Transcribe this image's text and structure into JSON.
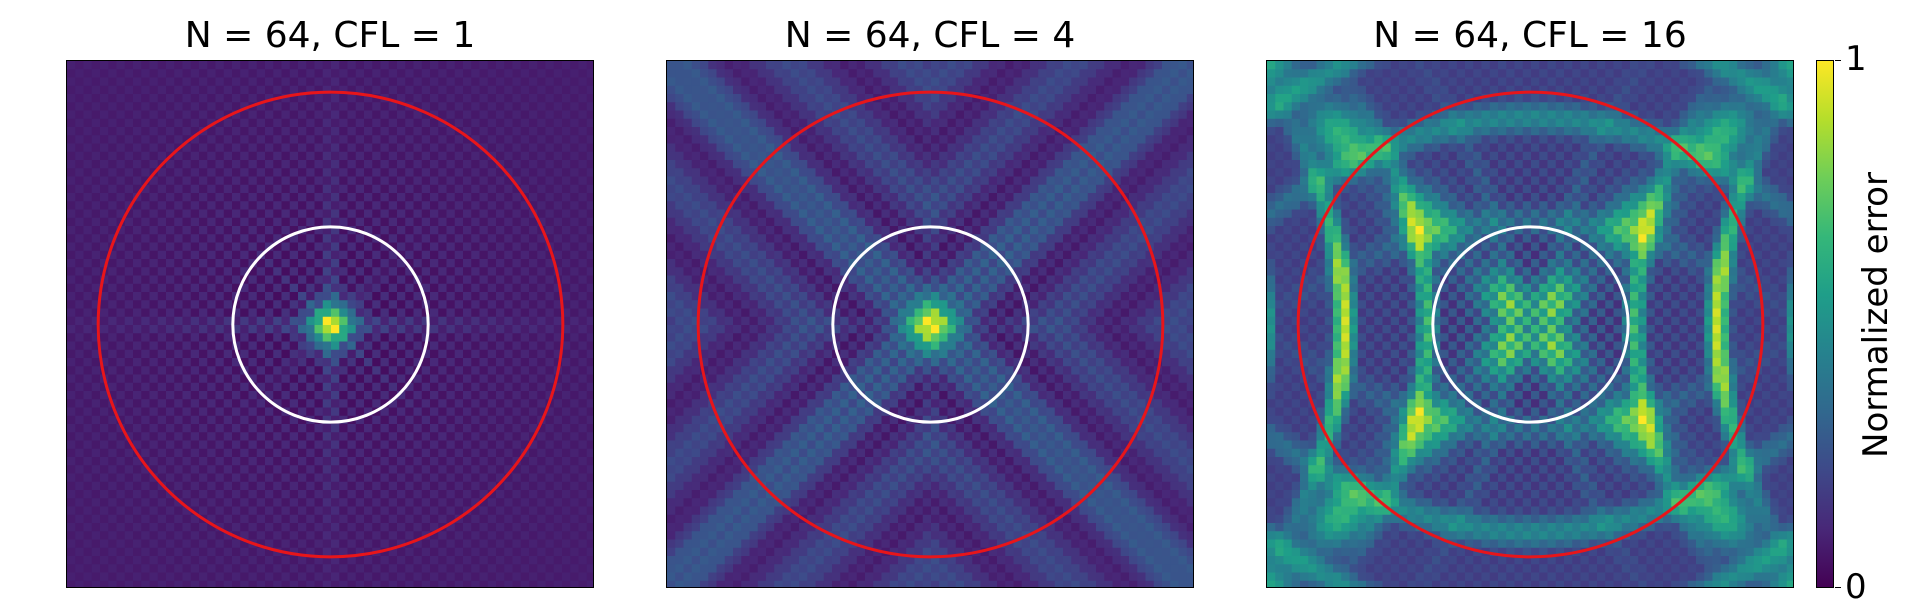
{
  "chart_data": [
    {
      "type": "heatmap",
      "title": "N = 64, CFL = 1",
      "grid_cells": [
        64,
        64
      ],
      "peak_value": 1.0,
      "background_value": 0.06,
      "pattern": "isotropic ripple with cross-shaped streaks around a bright centre cell",
      "overlays": [
        {
          "shape": "circle",
          "color": "#ffffff",
          "radius_fraction_of_half_width": 0.37
        },
        {
          "shape": "circle",
          "color": "#e8151a",
          "radius_fraction_of_half_width": 0.88
        }
      ]
    },
    {
      "type": "heatmap",
      "title": "N = 64, CFL = 4",
      "grid_cells": [
        64,
        64
      ],
      "peak_value": 1.0,
      "background_value": 0.12,
      "pattern": "diagonal X-shaped streaks and curved fronts around a bright centre cell",
      "overlays": [
        {
          "shape": "circle",
          "color": "#ffffff",
          "radius_fraction_of_half_width": 0.37
        },
        {
          "shape": "circle",
          "color": "#e8151a",
          "radius_fraction_of_half_width": 0.88
        }
      ]
    },
    {
      "type": "heatmap",
      "title": "N = 64, CFL = 16",
      "grid_cells": [
        64,
        64
      ],
      "peak_value": 1.0,
      "background_value": 0.15,
      "pattern": "large oscillatory bands near left and right edges, X-shaped structure through centre",
      "overlays": [
        {
          "shape": "circle",
          "color": "#ffffff",
          "radius_fraction_of_half_width": 0.37
        },
        {
          "shape": "circle",
          "color": "#e8151a",
          "radius_fraction_of_half_width": 0.88
        }
      ]
    }
  ],
  "colorbar": {
    "label": "Normalized error",
    "min": 0,
    "max": 1,
    "min_label": "0",
    "max_label": "1",
    "colormap": "viridis",
    "colormap_stops": [
      "#440154",
      "#482878",
      "#3e4989",
      "#31688e",
      "#26828e",
      "#1f9e89",
      "#35b779",
      "#6ece58",
      "#b5de2b",
      "#fde725"
    ]
  }
}
